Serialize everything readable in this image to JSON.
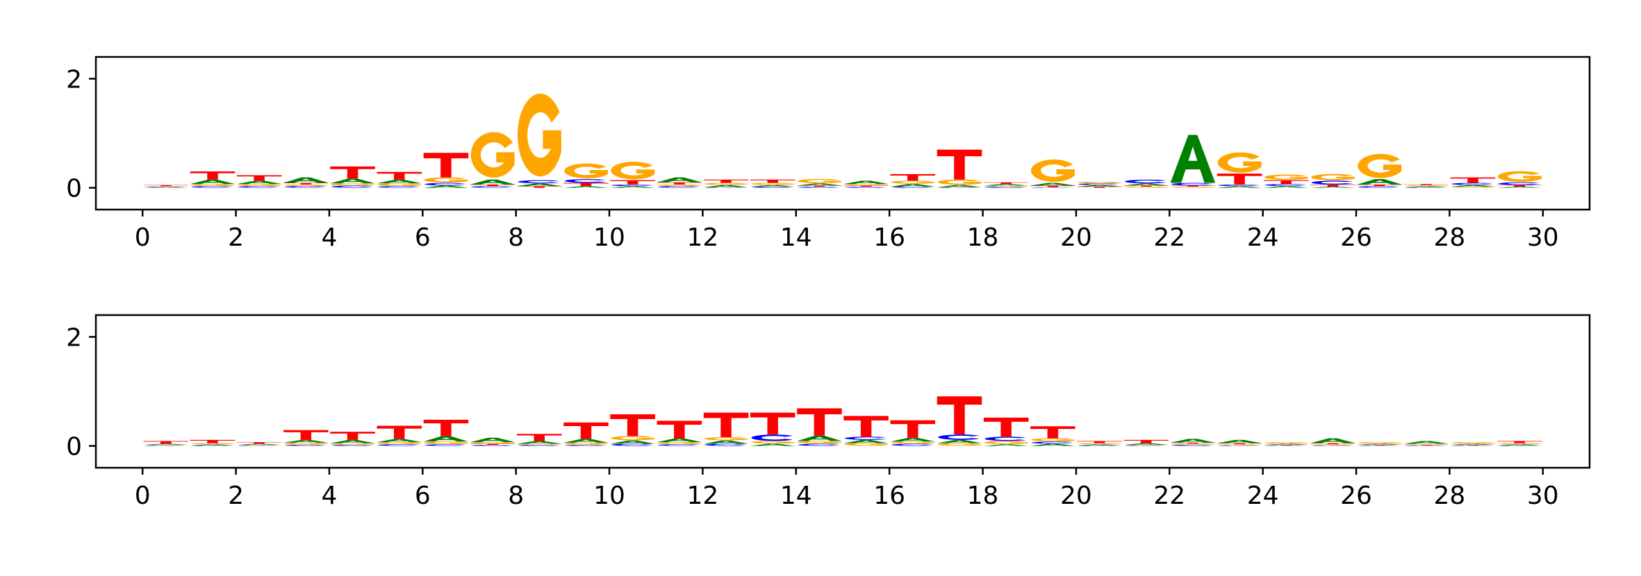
{
  "chart_data": [
    {
      "type": "sequence-logo",
      "alphabet": [
        "A",
        "C",
        "G",
        "T"
      ],
      "x_ticks": [
        "0",
        "2",
        "4",
        "6",
        "8",
        "10",
        "12",
        "14",
        "16",
        "18",
        "20",
        "22",
        "24",
        "26",
        "28",
        "30"
      ],
      "y_ticks": [
        "0",
        "2"
      ],
      "xlim": [
        -1,
        31
      ],
      "ylim": [
        -0.4,
        2.4
      ],
      "colors": {
        "A": "#008000",
        "C": "#0000ff",
        "G": "#ffa500",
        "T": "#ff0000"
      },
      "positions": [
        {
          "x": 0,
          "A": 0.01,
          "C": 0.01,
          "G": 0.01,
          "T": 0.02
        },
        {
          "x": 1,
          "A": 0.08,
          "C": 0.03,
          "G": 0.04,
          "T": 0.15
        },
        {
          "x": 2,
          "A": 0.06,
          "C": 0.03,
          "G": 0.04,
          "T": 0.1
        },
        {
          "x": 3,
          "A": 0.1,
          "C": 0.03,
          "G": 0.03,
          "T": 0.03
        },
        {
          "x": 4,
          "A": 0.09,
          "C": 0.04,
          "G": 0.04,
          "T": 0.22
        },
        {
          "x": 5,
          "A": 0.07,
          "C": 0.03,
          "G": 0.05,
          "T": 0.14
        },
        {
          "x": 6,
          "A": 0.04,
          "C": 0.05,
          "G": 0.1,
          "T": 0.45
        },
        {
          "x": 7,
          "A": 0.09,
          "C": 0.03,
          "G": 0.85,
          "T": 0.03
        },
        {
          "x": 8,
          "A": 0.05,
          "C": 0.06,
          "G": 1.55,
          "T": 0.03
        },
        {
          "x": 9,
          "A": 0.03,
          "C": 0.07,
          "G": 0.28,
          "T": 0.06
        },
        {
          "x": 10,
          "A": 0.03,
          "C": 0.03,
          "G": 0.33,
          "T": 0.08
        },
        {
          "x": 11,
          "A": 0.09,
          "C": 0.03,
          "G": 0.03,
          "T": 0.04
        },
        {
          "x": 12,
          "A": 0.04,
          "C": 0.01,
          "G": 0.04,
          "T": 0.06
        },
        {
          "x": 13,
          "A": 0.03,
          "C": 0.02,
          "G": 0.04,
          "T": 0.06
        },
        {
          "x": 14,
          "A": 0.04,
          "C": 0.02,
          "G": 0.08,
          "T": 0.02
        },
        {
          "x": 15,
          "A": 0.06,
          "C": 0.02,
          "G": 0.03,
          "T": 0.02
        },
        {
          "x": 16,
          "A": 0.05,
          "C": 0.02,
          "G": 0.06,
          "T": 0.12
        },
        {
          "x": 17,
          "A": 0.04,
          "C": 0.01,
          "G": 0.1,
          "T": 0.55
        },
        {
          "x": 18,
          "A": 0.03,
          "C": 0.02,
          "G": 0.02,
          "T": 0.03
        },
        {
          "x": 19,
          "A": 0.05,
          "C": 0.01,
          "G": 0.42,
          "T": 0.03
        },
        {
          "x": 20,
          "A": 0.03,
          "C": 0.03,
          "G": 0.03,
          "T": 0.02
        },
        {
          "x": 21,
          "A": 0.04,
          "C": 0.07,
          "G": 0.02,
          "T": 0.02
        },
        {
          "x": 22,
          "A": 0.88,
          "C": 0.05,
          "G": 0.02,
          "T": 0.02
        },
        {
          "x": 23,
          "A": 0.03,
          "C": 0.03,
          "G": 0.38,
          "T": 0.2
        },
        {
          "x": 24,
          "A": 0.03,
          "C": 0.04,
          "G": 0.1,
          "T": 0.07
        },
        {
          "x": 25,
          "A": 0.02,
          "C": 0.07,
          "G": 0.12,
          "T": 0.04
        },
        {
          "x": 26,
          "A": 0.1,
          "C": 0.03,
          "G": 0.45,
          "T": 0.03
        },
        {
          "x": 27,
          "A": 0.02,
          "C": 0.01,
          "G": 0.02,
          "T": 0.02
        },
        {
          "x": 28,
          "A": 0.03,
          "C": 0.04,
          "G": 0.02,
          "T": 0.1
        },
        {
          "x": 29,
          "A": 0.02,
          "C": 0.05,
          "G": 0.2,
          "T": 0.03
        }
      ]
    },
    {
      "type": "sequence-logo",
      "alphabet": [
        "A",
        "C",
        "G",
        "T"
      ],
      "x_ticks": [
        "0",
        "2",
        "4",
        "6",
        "8",
        "10",
        "12",
        "14",
        "16",
        "18",
        "20",
        "22",
        "24",
        "26",
        "28",
        "30"
      ],
      "y_ticks": [
        "0",
        "2"
      ],
      "xlim": [
        -1,
        31
      ],
      "ylim": [
        -0.4,
        2.4
      ],
      "colors": {
        "A": "#008000",
        "C": "#0000ff",
        "G": "#ffa500",
        "T": "#ff0000"
      },
      "positions": [
        {
          "x": 0,
          "A": 0.02,
          "C": 0.01,
          "G": 0.01,
          "T": 0.05
        },
        {
          "x": 1,
          "A": 0.02,
          "C": 0.01,
          "G": 0.02,
          "T": 0.06
        },
        {
          "x": 2,
          "A": 0.02,
          "C": 0.01,
          "G": 0.01,
          "T": 0.03
        },
        {
          "x": 3,
          "A": 0.05,
          "C": 0.02,
          "G": 0.04,
          "T": 0.18
        },
        {
          "x": 4,
          "A": 0.06,
          "C": 0.02,
          "G": 0.03,
          "T": 0.15
        },
        {
          "x": 5,
          "A": 0.06,
          "C": 0.03,
          "G": 0.04,
          "T": 0.24
        },
        {
          "x": 6,
          "A": 0.1,
          "C": 0.03,
          "G": 0.05,
          "T": 0.3
        },
        {
          "x": 7,
          "A": 0.08,
          "C": 0.02,
          "G": 0.03,
          "T": 0.02
        },
        {
          "x": 8,
          "A": 0.05,
          "C": 0.02,
          "G": 0.02,
          "T": 0.13
        },
        {
          "x": 9,
          "A": 0.07,
          "C": 0.02,
          "G": 0.04,
          "T": 0.3
        },
        {
          "x": 10,
          "A": 0.06,
          "C": 0.04,
          "G": 0.08,
          "T": 0.4
        },
        {
          "x": 11,
          "A": 0.07,
          "C": 0.03,
          "G": 0.04,
          "T": 0.32
        },
        {
          "x": 12,
          "A": 0.06,
          "C": 0.04,
          "G": 0.06,
          "T": 0.45
        },
        {
          "x": 13,
          "A": 0.04,
          "C": 0.12,
          "G": 0.05,
          "T": 0.4
        },
        {
          "x": 14,
          "A": 0.1,
          "C": 0.04,
          "G": 0.05,
          "T": 0.5
        },
        {
          "x": 15,
          "A": 0.06,
          "C": 0.06,
          "G": 0.05,
          "T": 0.38
        },
        {
          "x": 16,
          "A": 0.07,
          "C": 0.04,
          "G": 0.04,
          "T": 0.32
        },
        {
          "x": 17,
          "A": 0.06,
          "C": 0.1,
          "G": 0.05,
          "T": 0.7
        },
        {
          "x": 18,
          "A": 0.03,
          "C": 0.08,
          "G": 0.06,
          "T": 0.35
        },
        {
          "x": 19,
          "A": 0.04,
          "C": 0.04,
          "G": 0.06,
          "T": 0.22
        },
        {
          "x": 20,
          "A": 0.02,
          "C": 0.01,
          "G": 0.02,
          "T": 0.04
        },
        {
          "x": 21,
          "A": 0.03,
          "C": 0.01,
          "G": 0.01,
          "T": 0.06
        },
        {
          "x": 22,
          "A": 0.07,
          "C": 0.02,
          "G": 0.02,
          "T": 0.02
        },
        {
          "x": 23,
          "A": 0.06,
          "C": 0.01,
          "G": 0.02,
          "T": 0.02
        },
        {
          "x": 24,
          "A": 0.02,
          "C": 0.01,
          "G": 0.03,
          "T": 0.01
        },
        {
          "x": 25,
          "A": 0.09,
          "C": 0.01,
          "G": 0.02,
          "T": 0.02
        },
        {
          "x": 26,
          "A": 0.02,
          "C": 0.01,
          "G": 0.03,
          "T": 0.01
        },
        {
          "x": 27,
          "A": 0.05,
          "C": 0.01,
          "G": 0.02,
          "T": 0.01
        },
        {
          "x": 28,
          "A": 0.02,
          "C": 0.01,
          "G": 0.03,
          "T": 0.01
        },
        {
          "x": 29,
          "A": 0.02,
          "C": 0.01,
          "G": 0.02,
          "T": 0.04
        }
      ]
    }
  ]
}
